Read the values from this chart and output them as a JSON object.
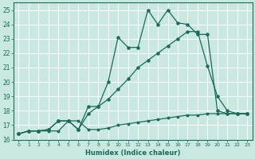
{
  "title": "",
  "xlabel": "Humidex (Indice chaleur)",
  "ylabel": "",
  "bg_color": "#c8e8e0",
  "grid_color": "#b0d0c8",
  "line_color": "#1a6b5a",
  "xlim": [
    -0.5,
    23.5
  ],
  "ylim": [
    16,
    25.5
  ],
  "xticks": [
    0,
    1,
    2,
    3,
    4,
    5,
    6,
    7,
    8,
    9,
    10,
    11,
    12,
    13,
    14,
    15,
    16,
    17,
    18,
    19,
    20,
    21,
    22,
    23
  ],
  "yticks": [
    16,
    17,
    18,
    19,
    20,
    21,
    22,
    23,
    24,
    25
  ],
  "series1_x": [
    0,
    1,
    2,
    3,
    4,
    5,
    6,
    7,
    8,
    9,
    10,
    11,
    12,
    13,
    14,
    15,
    16,
    17,
    18,
    19,
    20,
    21,
    22,
    23
  ],
  "series1_y": [
    16.4,
    16.6,
    16.6,
    16.6,
    16.6,
    17.3,
    17.3,
    16.7,
    16.7,
    16.8,
    17.0,
    17.1,
    17.2,
    17.3,
    17.4,
    17.5,
    17.6,
    17.7,
    17.7,
    17.8,
    17.8,
    17.8,
    17.8,
    17.8
  ],
  "series2_x": [
    0,
    1,
    2,
    3,
    4,
    5,
    6,
    7,
    8,
    9,
    10,
    11,
    12,
    13,
    14,
    15,
    16,
    17,
    18,
    19,
    20,
    21,
    22,
    23
  ],
  "series2_y": [
    16.4,
    16.6,
    16.6,
    16.7,
    17.3,
    17.3,
    16.7,
    18.3,
    18.3,
    18.8,
    19.5,
    20.2,
    21.0,
    21.5,
    22.0,
    22.5,
    23.0,
    23.5,
    23.5,
    21.1,
    19.0,
    18.0,
    17.8,
    17.8
  ],
  "series3_x": [
    0,
    1,
    2,
    3,
    4,
    5,
    6,
    7,
    8,
    9,
    10,
    11,
    12,
    13,
    14,
    15,
    16,
    17,
    18,
    19,
    20,
    21,
    22,
    23
  ],
  "series3_y": [
    16.4,
    16.6,
    16.6,
    16.7,
    17.3,
    17.3,
    16.7,
    17.8,
    18.3,
    20.0,
    23.1,
    22.4,
    22.4,
    25.0,
    24.0,
    25.0,
    24.1,
    24.0,
    23.3,
    23.3,
    18.0,
    17.8,
    17.8,
    17.8
  ]
}
